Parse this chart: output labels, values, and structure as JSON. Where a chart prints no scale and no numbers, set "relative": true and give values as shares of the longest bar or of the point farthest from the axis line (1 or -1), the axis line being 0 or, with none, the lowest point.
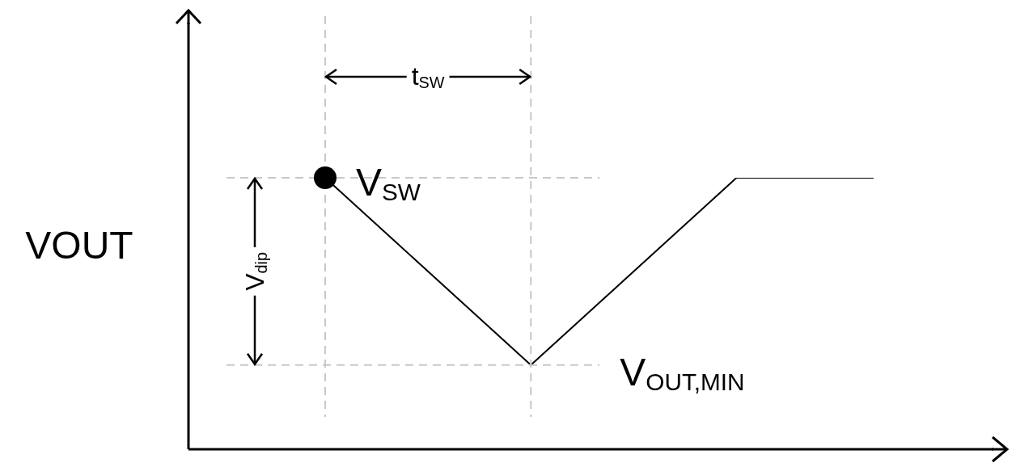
{
  "chart_data": {
    "type": "line",
    "ylabel": "VOUT",
    "relative": true,
    "legend": false,
    "marker": "none",
    "line_style": "solid",
    "categories": [
      null,
      null,
      null,
      null,
      null,
      null,
      null,
      null,
      null
    ],
    "series": [
      {
        "color": "#000000",
        "values": [
          1,
          0.77,
          0.54,
          0.31,
          0.54,
          0.77,
          1,
          1,
          1
        ]
      }
    ],
    "annotations": [
      "V$_{SW}$",
      "t$_{SW}$",
      "V$_{dip}$",
      "V$_{OUT,MIN}$"
    ]
  }
}
